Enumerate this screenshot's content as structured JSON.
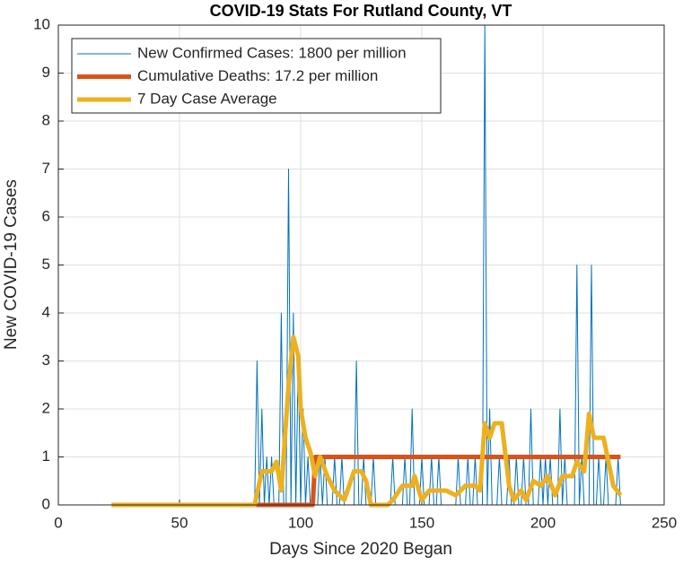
{
  "chart_data": {
    "type": "line",
    "title": "COVID-19 Stats For Rutland County, VT",
    "x_label": "Days Since 2020 Began",
    "y_label": "New COVID-19 Cases",
    "xlim": [
      0,
      250
    ],
    "xticks": [
      0,
      50,
      100,
      150,
      200,
      250
    ],
    "ylim": [
      0,
      10
    ],
    "yticks": [
      0,
      1,
      2,
      3,
      4,
      5,
      6,
      7,
      8,
      9,
      10
    ],
    "grid": true,
    "legend": "upper-left",
    "series": [
      {
        "name": "New Confirmed Cases: 1800 per million",
        "color": "#0072BD",
        "line_width": 1,
        "x": [
          22,
          80,
          81,
          82,
          83,
          84,
          85,
          86,
          87,
          88,
          89,
          90,
          91,
          92,
          93,
          94,
          95,
          96,
          97,
          98,
          99,
          100,
          101,
          102,
          103,
          104,
          105,
          106,
          107,
          108,
          109,
          110,
          111,
          112,
          113,
          114,
          115,
          116,
          117,
          118,
          119,
          120,
          121,
          122,
          123,
          124,
          125,
          126,
          127,
          128,
          129,
          130,
          131,
          132,
          133,
          134,
          135,
          136,
          137,
          138,
          139,
          140,
          141,
          142,
          143,
          144,
          145,
          146,
          147,
          148,
          149,
          150,
          151,
          152,
          153,
          154,
          155,
          156,
          157,
          158,
          159,
          160,
          161,
          162,
          163,
          164,
          165,
          166,
          167,
          168,
          169,
          170,
          171,
          172,
          173,
          174,
          175,
          176,
          177,
          178,
          179,
          180,
          181,
          182,
          183,
          184,
          185,
          186,
          187,
          188,
          189,
          190,
          191,
          192,
          193,
          194,
          195,
          196,
          197,
          198,
          199,
          200,
          201,
          202,
          203,
          204,
          205,
          206,
          207,
          208,
          209,
          210,
          211,
          212,
          213,
          214,
          215,
          216,
          217,
          218,
          219,
          220,
          221,
          222,
          223,
          224,
          225,
          226,
          227,
          228,
          229,
          230,
          231,
          232
        ],
        "values": [
          0,
          0,
          0,
          3,
          0,
          2,
          0,
          1,
          0,
          1,
          0,
          0,
          0,
          4,
          0,
          0,
          7,
          0,
          4,
          0,
          3,
          0,
          2,
          0,
          1,
          0,
          0,
          0,
          0,
          1,
          0,
          1,
          0,
          0,
          0,
          1,
          0,
          0,
          1,
          0,
          0,
          0,
          0,
          0,
          3,
          0,
          0,
          1,
          0,
          0,
          0,
          1,
          0,
          0,
          0,
          0,
          0,
          0,
          0,
          1,
          0,
          0,
          0,
          0,
          1,
          0,
          0,
          2,
          0,
          0,
          0,
          1,
          0,
          0,
          0,
          1,
          0,
          0,
          1,
          0,
          0,
          0,
          0,
          0,
          0,
          0,
          1,
          0,
          0,
          0,
          1,
          0,
          0,
          1,
          0,
          0,
          0,
          10,
          0,
          2,
          0,
          0,
          0,
          1,
          0,
          0,
          0,
          1,
          0,
          0,
          1,
          0,
          0,
          1,
          0,
          0,
          2,
          0,
          0,
          0,
          1,
          0,
          1,
          0,
          1,
          0,
          0,
          0,
          2,
          0,
          1,
          0,
          0,
          0,
          0,
          5,
          0,
          1,
          0,
          0,
          0,
          5,
          0,
          0,
          1,
          0,
          0,
          1,
          0,
          0,
          0,
          0,
          1,
          0
        ]
      },
      {
        "name": "Cumulative Deaths: 17.2 per million",
        "color": "#D95319",
        "line_width": 5,
        "x": [
          22,
          105,
          106,
          232
        ],
        "values": [
          0,
          0,
          1,
          1
        ]
      },
      {
        "name": "7 Day Case Average",
        "color": "#EDB120",
        "line_width": 5,
        "x": [
          22,
          81,
          84,
          88,
          90,
          92,
          95,
          97,
          99,
          100,
          102,
          104,
          106,
          108,
          111,
          114,
          118,
          122,
          125,
          127,
          129,
          136,
          138,
          142,
          146,
          147,
          150,
          153,
          160,
          164,
          168,
          172,
          174,
          176,
          178,
          180,
          183,
          186,
          188,
          191,
          193,
          196,
          199,
          202,
          205,
          208,
          212,
          214,
          217,
          219,
          221,
          225,
          227,
          229,
          232
        ],
        "values": [
          0,
          0,
          0.7,
          0.7,
          0.9,
          0.3,
          2.5,
          3.5,
          3.1,
          2,
          1.4,
          1.1,
          0.6,
          1,
          0.6,
          0.3,
          0.1,
          0.7,
          0.7,
          0.5,
          0,
          0,
          0.1,
          0.4,
          0.4,
          0.6,
          0.1,
          0.3,
          0.3,
          0.2,
          0.4,
          0.4,
          0.3,
          1.7,
          1.4,
          1.7,
          1.7,
          0.4,
          0.1,
          0.3,
          0.1,
          0.5,
          0.4,
          0.6,
          0.2,
          0.6,
          0.6,
          0.9,
          0.7,
          1.9,
          1.4,
          1.4,
          0.9,
          0.4,
          0.2
        ]
      }
    ]
  }
}
